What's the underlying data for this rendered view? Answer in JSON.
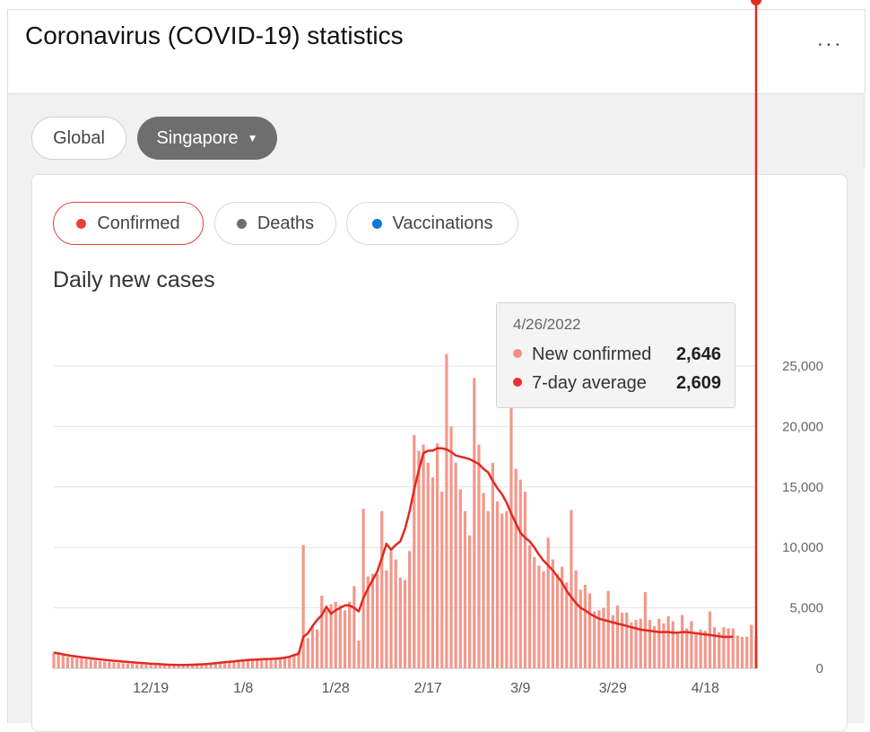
{
  "card": {
    "title": "Coronavirus (COVID-19) statistics",
    "more_label": "..."
  },
  "region": {
    "global_label": "Global",
    "selected_label": "Singapore",
    "caret": "▼"
  },
  "tabs": [
    {
      "label": "Confirmed",
      "color": "#e8403a"
    },
    {
      "label": "Deaths",
      "color": "#6e6e6e"
    },
    {
      "label": "Vaccinations",
      "color": "#0f78d4"
    }
  ],
  "chart_heading": "Daily new cases",
  "tooltip": {
    "date": "4/26/2022",
    "rows": [
      {
        "label": "New confirmed",
        "value": "2,646",
        "color": "#f0907f"
      },
      {
        "label": "7-day average",
        "value": "2,609",
        "color": "#e8302a"
      }
    ]
  },
  "colors": {
    "bar": "#f4978a",
    "line": "#e02a22",
    "grid": "#e4e4e4"
  },
  "chart_data": {
    "type": "bar",
    "title": "Daily new cases",
    "ylim": [
      0,
      25000
    ],
    "y_ticks": [
      "0",
      "5,000",
      "10,000",
      "15,000",
      "20,000",
      "25,000"
    ],
    "y_tick_values": [
      0,
      5000,
      10000,
      15000,
      20000,
      25000
    ],
    "x_ticks": [
      "12/19",
      "1/8",
      "1/28",
      "2/17",
      "3/9",
      "3/29",
      "4/18"
    ],
    "x_tick_day_index": [
      21,
      41,
      61,
      81,
      101,
      121,
      141
    ],
    "grid": true,
    "series": [
      {
        "name": "New confirmed",
        "kind": "bar",
        "values": [
          1300,
          1200,
          1050,
          950,
          900,
          850,
          800,
          750,
          700,
          650,
          600,
          560,
          520,
          480,
          450,
          420,
          400,
          380,
          350,
          320,
          300,
          280,
          270,
          260,
          250,
          240,
          240,
          240,
          240,
          250,
          260,
          270,
          290,
          310,
          340,
          380,
          420,
          480,
          520,
          560,
          600,
          650,
          700,
          730,
          760,
          780,
          790,
          800,
          820,
          850,
          900,
          1000,
          1200,
          1400,
          10200,
          2500,
          3500,
          3200,
          6000,
          4800,
          5300,
          5500,
          5200,
          4800,
          5500,
          6800,
          2300,
          13200,
          7600,
          7800,
          7800,
          13000,
          8100,
          9700,
          9000,
          7500,
          7300,
          9700,
          19300,
          18000,
          18500,
          17000,
          15800,
          18600,
          14600,
          26000,
          20000,
          17000,
          14800,
          13000,
          11000,
          24000,
          18500,
          14500,
          13000,
          17000,
          13800,
          12800,
          13000,
          21800,
          16500,
          15600,
          14600,
          10200,
          9200,
          8500,
          8000,
          10800,
          9000,
          7800,
          8400,
          7100,
          13100,
          8100,
          6500,
          6900,
          6200,
          4700,
          4800,
          5000,
          6400,
          4400,
          5200,
          4600,
          4600,
          3800,
          4000,
          4100,
          6300,
          4000,
          3500,
          4100,
          3700,
          4300,
          3900,
          2900,
          4400,
          3300,
          3900,
          2800,
          3200,
          3100,
          4700,
          3400,
          3000,
          3400,
          3300,
          3300,
          2700,
          2600,
          2600,
          3600,
          2646
        ],
        "color": "#f4978a"
      },
      {
        "name": "7-day average",
        "kind": "line",
        "values": [
          1300,
          1230,
          1150,
          1080,
          1020,
          970,
          920,
          870,
          820,
          780,
          740,
          700,
          660,
          620,
          590,
          560,
          530,
          500,
          470,
          440,
          410,
          380,
          360,
          340,
          320,
          300,
          290,
          280,
          280,
          290,
          300,
          310,
          330,
          350,
          380,
          420,
          460,
          500,
          540,
          580,
          620,
          650,
          680,
          710,
          730,
          750,
          770,
          780,
          800,
          820,
          880,
          950,
          1100,
          1200,
          2600,
          2900,
          3500,
          4000,
          4400,
          5100,
          4500,
          4800,
          5000,
          5200,
          5200,
          5000,
          4700,
          5800,
          6600,
          7300,
          8000,
          9100,
          10300,
          9800,
          10200,
          10500,
          11500,
          13000,
          14800,
          16400,
          17800,
          18000,
          18000,
          18200,
          18200,
          18100,
          17900,
          17600,
          17500,
          17400,
          17300,
          17100,
          16900,
          16500,
          16200,
          15500,
          14900,
          14400,
          13700,
          12800,
          12000,
          11200,
          10800,
          10500,
          10000,
          9400,
          8900,
          8500,
          8100,
          7600,
          7100,
          6400,
          5900,
          5400,
          5000,
          4800,
          4500,
          4300,
          4100,
          4000,
          3900,
          3800,
          3700,
          3600,
          3500,
          3400,
          3300,
          3200,
          3150,
          3100,
          3050,
          3000,
          3000,
          3000,
          2950,
          2950,
          3000,
          3000,
          2950,
          2900,
          2850,
          2800,
          2750,
          2700,
          2650,
          2600,
          2600,
          2609
        ]
      }
    ]
  }
}
